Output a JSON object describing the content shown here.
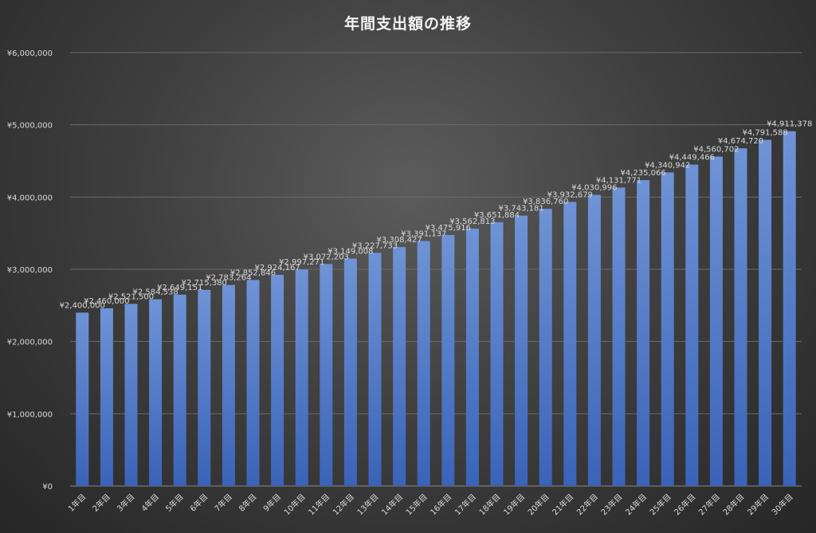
{
  "chart_data": {
    "type": "bar",
    "title": "年間支出額の推移",
    "xlabel": "",
    "ylabel": "",
    "ylim": [
      0,
      6000000
    ],
    "yticks": [
      0,
      1000000,
      2000000,
      3000000,
      4000000,
      5000000,
      6000000
    ],
    "ytick_labels": [
      "¥0",
      "¥1,000,000",
      "¥2,000,000",
      "¥3,000,000",
      "¥4,000,000",
      "¥5,000,000",
      "¥6,000,000"
    ],
    "grid": true,
    "legend": "none",
    "categories": [
      "1年目",
      "2年目",
      "3年目",
      "4年目",
      "5年目",
      "6年目",
      "7年目",
      "8年目",
      "9年目",
      "10年目",
      "11年目",
      "12年目",
      "13年目",
      "14年目",
      "15年目",
      "16年目",
      "17年目",
      "18年目",
      "19年目",
      "20年目",
      "21年目",
      "22年目",
      "23年目",
      "24年目",
      "25年目",
      "26年目",
      "27年目",
      "28年目",
      "29年目",
      "30年目"
    ],
    "values": [
      2400000,
      2460000,
      2521500,
      2584538,
      2649151,
      2715380,
      2783264,
      2852846,
      2924167,
      2997271,
      3072203,
      3149008,
      3227733,
      3308427,
      3391137,
      3475916,
      3562813,
      3651884,
      3743181,
      3836760,
      3932679,
      4030996,
      4131771,
      4235066,
      4340942,
      4449466,
      4560702,
      4674720,
      4791588,
      4911378
    ],
    "data_labels": [
      "¥2,400,000",
      "¥2,460,000",
      "¥2,521,500",
      "¥2,584,538",
      "¥2,649,151",
      "¥2,715,380",
      "¥2,783,264",
      "¥2,852,846",
      "¥2,924,167",
      "¥2,997,271",
      "¥3,072,203",
      "¥3,149,008",
      "¥3,227,733",
      "¥3,308,427",
      "¥3,391,137",
      "¥3,475,916",
      "¥3,562,813",
      "¥3,651,884",
      "¥3,743,181",
      "¥3,836,760",
      "¥3,932,679",
      "¥4,030,996",
      "¥4,131,771",
      "¥4,235,066",
      "¥4,340,942",
      "¥4,449,466",
      "¥4,560,702",
      "¥4,674,720",
      "¥4,791,588",
      "¥4,911,378"
    ],
    "colors": {
      "bar_top": "#6f93d6",
      "bar_bottom": "#3a63b8"
    }
  }
}
